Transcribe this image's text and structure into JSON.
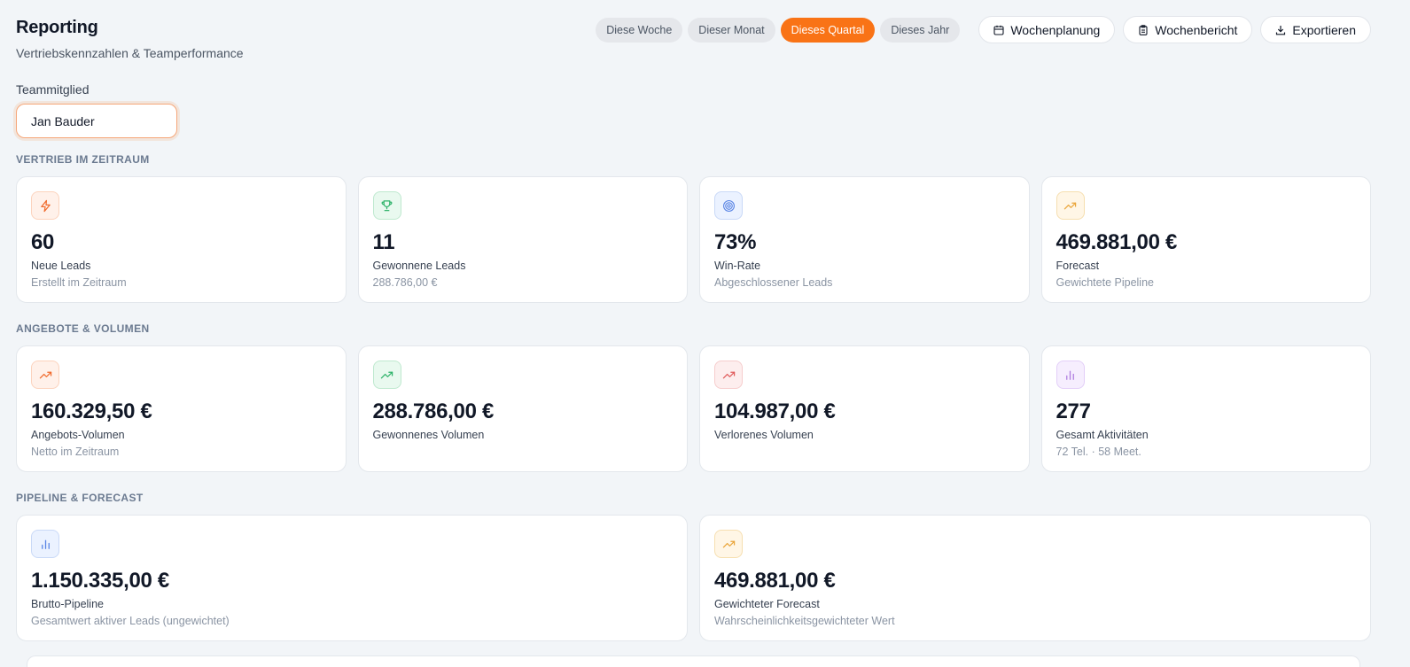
{
  "header": {
    "title": "Reporting",
    "subtitle": "Vertriebskennzahlen & Teamperformance"
  },
  "toolbar": {
    "periods": [
      "Diese Woche",
      "Dieser Monat",
      "Dieses Quartal",
      "Dieses Jahr"
    ],
    "active_period": "Dieses Quartal",
    "weekly_plan_label": "Wochenplanung",
    "weekly_report_label": "Wochenbericht",
    "export_label": "Exportieren"
  },
  "filter": {
    "member_label": "Teammitglied",
    "member_value": "Jan Bauder"
  },
  "sections": {
    "sales": {
      "label": "Vertrieb im Zeitraum",
      "cards": [
        {
          "icon": "lightning-icon",
          "value": "60",
          "label": "Neue Leads",
          "sub": "Erstellt im Zeitraum"
        },
        {
          "icon": "trophy-icon",
          "value": "11",
          "label": "Gewonnene Leads",
          "sub": "288.786,00 €"
        },
        {
          "icon": "target-icon",
          "value": "73%",
          "label": "Win-Rate",
          "sub": "Abgeschlossener Leads"
        },
        {
          "icon": "trend-up-icon",
          "value": "469.881,00 €",
          "label": "Forecast",
          "sub": "Gewichtete Pipeline"
        }
      ]
    },
    "offers": {
      "label": "Angebote & Volumen",
      "cards": [
        {
          "icon": "trend-up-icon",
          "value": "160.329,50 €",
          "label": "Angebots-Volumen",
          "sub": "Netto im Zeitraum"
        },
        {
          "icon": "trend-up-icon",
          "value": "288.786,00 €",
          "label": "Gewonnenes Volumen",
          "sub": ""
        },
        {
          "icon": "trend-up-icon",
          "value": "104.987,00 €",
          "label": "Verlorenes Volumen",
          "sub": ""
        },
        {
          "icon": "bar-chart-icon",
          "value": "277",
          "label": "Gesamt Aktivitäten",
          "sub": "72 Tel. · 58 Meet."
        }
      ]
    },
    "pipeline": {
      "label": "Pipeline & Forecast",
      "cards": [
        {
          "icon": "bar-chart-icon",
          "value": "1.150.335,00 €",
          "label": "Brutto-Pipeline",
          "sub": "Gesamtwert aktiver Leads (ungewichtet)"
        },
        {
          "icon": "trend-up-icon",
          "value": "469.881,00 €",
          "label": "Gewichteter Forecast",
          "sub": "Wahrscheinlichkeitsgewichteter Wert"
        }
      ]
    }
  },
  "colors": {
    "accent": "#f97316",
    "background": "#f2f5f8"
  }
}
